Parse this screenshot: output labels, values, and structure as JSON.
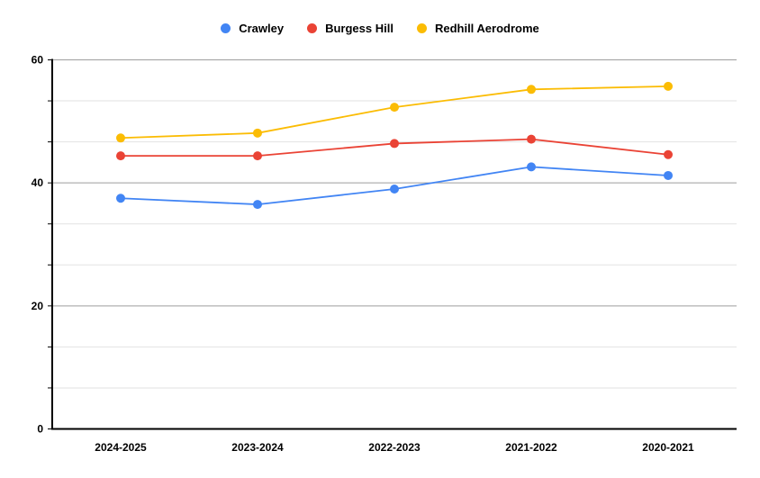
{
  "chart_data": {
    "type": "line",
    "title": "",
    "xlabel": "",
    "ylabel": "",
    "categories": [
      "2024-2025",
      "2023-2024",
      "2022-2023",
      "2021-2022",
      "2020-2021"
    ],
    "series": [
      {
        "name": "Crawley",
        "color": "#4285F4",
        "values": [
          37.5,
          36.5,
          39.0,
          42.6,
          41.2
        ]
      },
      {
        "name": "Burgess Hill",
        "color": "#EA4335",
        "values": [
          44.4,
          44.4,
          46.4,
          47.1,
          44.6
        ]
      },
      {
        "name": "Redhill Aerodrome",
        "color": "#FBBC04",
        "values": [
          47.3,
          48.1,
          52.3,
          55.2,
          55.7
        ]
      }
    ],
    "ylim": [
      0,
      60
    ],
    "y_major_ticks": [
      0,
      20,
      40,
      60
    ],
    "y_major_tick_labels": [
      "0",
      "20",
      "40",
      "60"
    ],
    "y_minor_divisions_per_major": 3,
    "grid": true,
    "legend_position": "top"
  },
  "colors": {
    "background": "#ffffff",
    "axis": "#000000",
    "major_gridline": "#9e9e9e",
    "minor_gridline": "#e2e2e2",
    "tick": "#000000",
    "label_text": "#000000"
  }
}
